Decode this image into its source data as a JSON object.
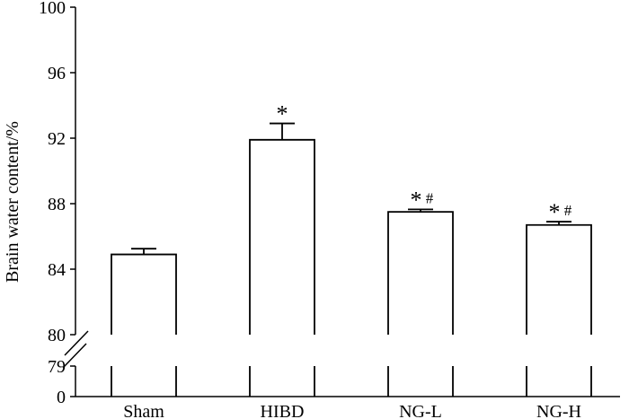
{
  "chart_data": {
    "type": "bar",
    "title": "",
    "xlabel": "",
    "ylabel": "Brain water content/%",
    "categories": [
      "Sham",
      "HIBD",
      "NG-L",
      "NG-H"
    ],
    "values": [
      84.9,
      91.9,
      87.5,
      86.7
    ],
    "errors": [
      0.35,
      1.0,
      0.15,
      0.2
    ],
    "annotations": [
      {
        "star": "",
        "hash": ""
      },
      {
        "star": "*",
        "hash": ""
      },
      {
        "star": "*",
        "hash": "#"
      },
      {
        "star": "*",
        "hash": "#"
      }
    ],
    "y_ticks_upper": [
      "80",
      "84",
      "88",
      "92",
      "96",
      "100"
    ],
    "y_ticks_lower": [
      "0",
      "79"
    ],
    "ylim_upper": [
      80,
      100
    ],
    "ylim_lower": [
      0,
      79
    ],
    "axis_break": true,
    "bar_fill": "#ffffff",
    "stroke_color": "#000000",
    "grid": false,
    "legend": "none"
  }
}
